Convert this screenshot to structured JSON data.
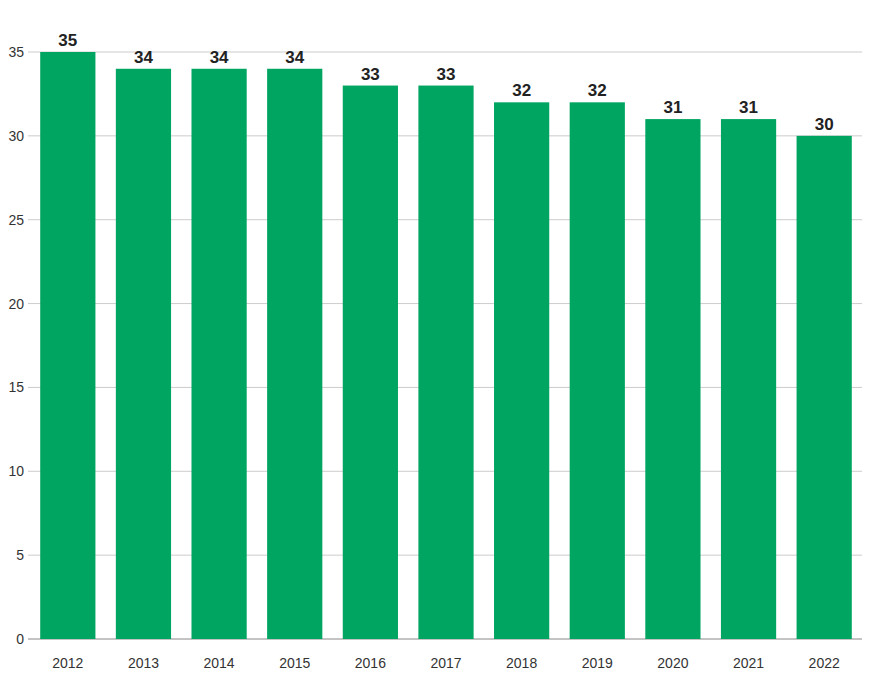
{
  "chart_data": {
    "type": "bar",
    "categories": [
      "2012",
      "2013",
      "2014",
      "2015",
      "2016",
      "2017",
      "2018",
      "2019",
      "2020",
      "2021",
      "2022"
    ],
    "values": [
      35,
      34,
      34,
      34,
      33,
      33,
      32,
      32,
      31,
      31,
      30
    ],
    "color": "#00a562",
    "ylim": [
      0,
      35
    ],
    "yticks": [
      0,
      5,
      10,
      15,
      20,
      25,
      30,
      35
    ],
    "grid": true,
    "data_labels": true
  }
}
